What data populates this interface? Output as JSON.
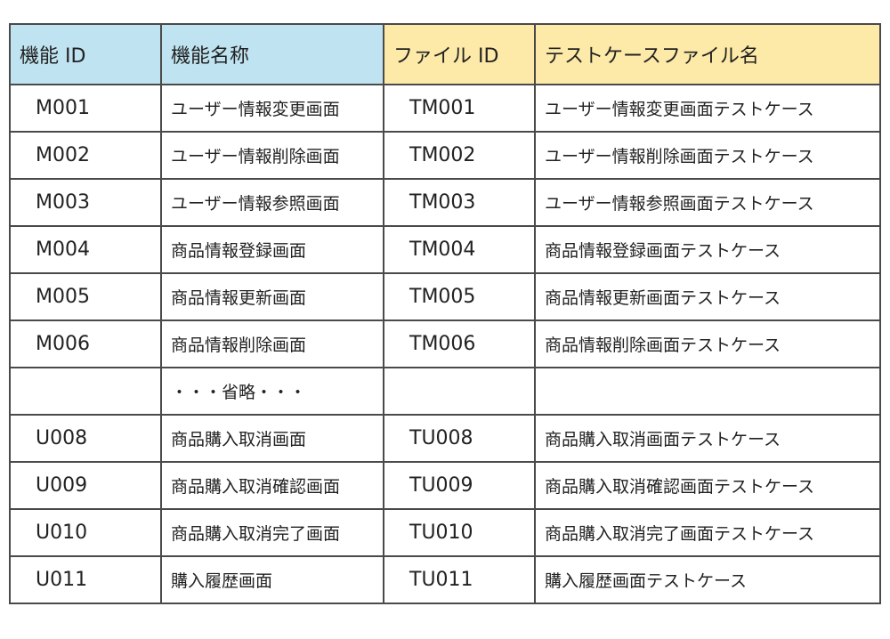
{
  "colors": {
    "function_header_bg": "#bfe3f0",
    "file_header_bg": "#fdeaa8",
    "border": "#4a4a4a"
  },
  "headers": [
    "機能 ID",
    "機能名称",
    "ファイル ID",
    "テストケースファイル名"
  ],
  "rows": [
    [
      "M001",
      "ユーザー情報変更画面",
      "TM001",
      "ユーザー情報変更画面テストケース"
    ],
    [
      "M002",
      "ユーザー情報削除画面",
      "TM002",
      "ユーザー情報削除画面テストケース"
    ],
    [
      "M003",
      "ユーザー情報参照画面",
      "TM003",
      "ユーザー情報参照画面テストケース"
    ],
    [
      "M004",
      "商品情報登録画面",
      "TM004",
      "商品情報登録画面テストケース"
    ],
    [
      "M005",
      "商品情報更新画面",
      "TM005",
      "商品情報更新画面テストケース"
    ],
    [
      "M006",
      "商品情報削除画面",
      "TM006",
      "商品情報削除画面テストケース"
    ],
    [
      "",
      "・・・省略・・・",
      "",
      ""
    ],
    [
      "U008",
      "商品購入取消画面",
      "TU008",
      "商品購入取消画面テストケース"
    ],
    [
      "U009",
      "商品購入取消確認画面",
      "TU009",
      "商品購入取消確認画面テストケース"
    ],
    [
      "U010",
      "商品購入取消完了画面",
      "TU010",
      "商品購入取消完了画面テストケース"
    ],
    [
      "U011",
      "購入履歴画面",
      "TU011",
      "購入履歴画面テストケース"
    ]
  ]
}
